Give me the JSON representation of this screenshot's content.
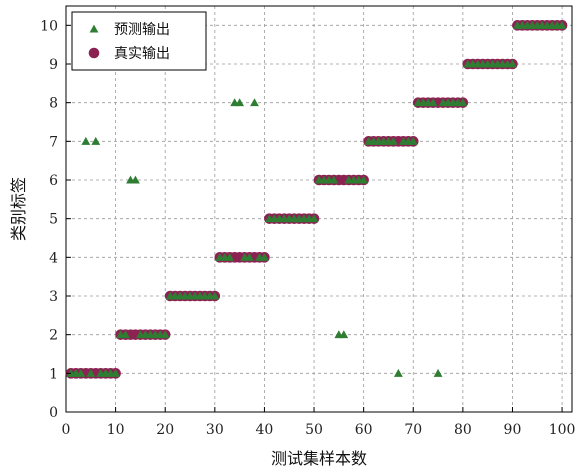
{
  "chart_data": {
    "type": "scatter",
    "xlabel": "测试集样本数",
    "ylabel": "类别标签",
    "xlim": [
      0,
      102
    ],
    "ylim": [
      0,
      10.5
    ],
    "x_ticks": [
      0,
      10,
      20,
      30,
      40,
      50,
      60,
      70,
      80,
      90,
      100
    ],
    "y_ticks": [
      0,
      1,
      2,
      3,
      4,
      5,
      6,
      7,
      8,
      9,
      10
    ],
    "grid": true,
    "grid_style": "dashed",
    "legend_position": "top-left",
    "series": [
      {
        "name": "预测输出",
        "marker": "triangle",
        "color": "#2e7d32",
        "points": [
          [
            1,
            1
          ],
          [
            2,
            1
          ],
          [
            3,
            1
          ],
          [
            4,
            7
          ],
          [
            5,
            1
          ],
          [
            6,
            7
          ],
          [
            7,
            1
          ],
          [
            8,
            1
          ],
          [
            9,
            1
          ],
          [
            10,
            1
          ],
          [
            11,
            2
          ],
          [
            12,
            2
          ],
          [
            13,
            6
          ],
          [
            14,
            6
          ],
          [
            15,
            2
          ],
          [
            16,
            2
          ],
          [
            17,
            2
          ],
          [
            18,
            2
          ],
          [
            19,
            2
          ],
          [
            20,
            2
          ],
          [
            21,
            3
          ],
          [
            22,
            3
          ],
          [
            23,
            3
          ],
          [
            24,
            3
          ],
          [
            25,
            3
          ],
          [
            26,
            3
          ],
          [
            27,
            3
          ],
          [
            28,
            3
          ],
          [
            29,
            3
          ],
          [
            30,
            3
          ],
          [
            31,
            4
          ],
          [
            32,
            4
          ],
          [
            33,
            4
          ],
          [
            34,
            8
          ],
          [
            35,
            8
          ],
          [
            36,
            4
          ],
          [
            37,
            4
          ],
          [
            38,
            8
          ],
          [
            39,
            4
          ],
          [
            40,
            4
          ],
          [
            41,
            5
          ],
          [
            42,
            5
          ],
          [
            43,
            5
          ],
          [
            44,
            5
          ],
          [
            45,
            5
          ],
          [
            46,
            5
          ],
          [
            47,
            5
          ],
          [
            48,
            5
          ],
          [
            49,
            5
          ],
          [
            50,
            5
          ],
          [
            51,
            6
          ],
          [
            52,
            6
          ],
          [
            53,
            6
          ],
          [
            54,
            6
          ],
          [
            55,
            2
          ],
          [
            56,
            2
          ],
          [
            57,
            6
          ],
          [
            58,
            6
          ],
          [
            59,
            6
          ],
          [
            60,
            6
          ],
          [
            61,
            7
          ],
          [
            62,
            7
          ],
          [
            63,
            7
          ],
          [
            64,
            7
          ],
          [
            65,
            7
          ],
          [
            66,
            7
          ],
          [
            67,
            1
          ],
          [
            68,
            7
          ],
          [
            69,
            7
          ],
          [
            70,
            7
          ],
          [
            71,
            8
          ],
          [
            72,
            8
          ],
          [
            73,
            8
          ],
          [
            74,
            8
          ],
          [
            75,
            1
          ],
          [
            76,
            8
          ],
          [
            77,
            8
          ],
          [
            78,
            8
          ],
          [
            79,
            8
          ],
          [
            80,
            8
          ],
          [
            81,
            9
          ],
          [
            82,
            9
          ],
          [
            83,
            9
          ],
          [
            84,
            9
          ],
          [
            85,
            9
          ],
          [
            86,
            9
          ],
          [
            87,
            9
          ],
          [
            88,
            9
          ],
          [
            89,
            9
          ],
          [
            90,
            9
          ],
          [
            91,
            10
          ],
          [
            92,
            10
          ],
          [
            93,
            10
          ],
          [
            94,
            10
          ],
          [
            95,
            10
          ],
          [
            96,
            10
          ],
          [
            97,
            10
          ],
          [
            98,
            10
          ],
          [
            99,
            10
          ],
          [
            100,
            10
          ]
        ]
      },
      {
        "name": "真实输出",
        "marker": "circle",
        "color": "#8b2252",
        "points": [
          [
            1,
            1
          ],
          [
            2,
            1
          ],
          [
            3,
            1
          ],
          [
            4,
            1
          ],
          [
            5,
            1
          ],
          [
            6,
            1
          ],
          [
            7,
            1
          ],
          [
            8,
            1
          ],
          [
            9,
            1
          ],
          [
            10,
            1
          ],
          [
            11,
            2
          ],
          [
            12,
            2
          ],
          [
            13,
            2
          ],
          [
            14,
            2
          ],
          [
            15,
            2
          ],
          [
            16,
            2
          ],
          [
            17,
            2
          ],
          [
            18,
            2
          ],
          [
            19,
            2
          ],
          [
            20,
            2
          ],
          [
            21,
            3
          ],
          [
            22,
            3
          ],
          [
            23,
            3
          ],
          [
            24,
            3
          ],
          [
            25,
            3
          ],
          [
            26,
            3
          ],
          [
            27,
            3
          ],
          [
            28,
            3
          ],
          [
            29,
            3
          ],
          [
            30,
            3
          ],
          [
            31,
            4
          ],
          [
            32,
            4
          ],
          [
            33,
            4
          ],
          [
            34,
            4
          ],
          [
            35,
            4
          ],
          [
            36,
            4
          ],
          [
            37,
            4
          ],
          [
            38,
            4
          ],
          [
            39,
            4
          ],
          [
            40,
            4
          ],
          [
            41,
            5
          ],
          [
            42,
            5
          ],
          [
            43,
            5
          ],
          [
            44,
            5
          ],
          [
            45,
            5
          ],
          [
            46,
            5
          ],
          [
            47,
            5
          ],
          [
            48,
            5
          ],
          [
            49,
            5
          ],
          [
            50,
            5
          ],
          [
            51,
            6
          ],
          [
            52,
            6
          ],
          [
            53,
            6
          ],
          [
            54,
            6
          ],
          [
            55,
            6
          ],
          [
            56,
            6
          ],
          [
            57,
            6
          ],
          [
            58,
            6
          ],
          [
            59,
            6
          ],
          [
            60,
            6
          ],
          [
            61,
            7
          ],
          [
            62,
            7
          ],
          [
            63,
            7
          ],
          [
            64,
            7
          ],
          [
            65,
            7
          ],
          [
            66,
            7
          ],
          [
            67,
            7
          ],
          [
            68,
            7
          ],
          [
            69,
            7
          ],
          [
            70,
            7
          ],
          [
            71,
            8
          ],
          [
            72,
            8
          ],
          [
            73,
            8
          ],
          [
            74,
            8
          ],
          [
            75,
            8
          ],
          [
            76,
            8
          ],
          [
            77,
            8
          ],
          [
            78,
            8
          ],
          [
            79,
            8
          ],
          [
            80,
            8
          ],
          [
            81,
            9
          ],
          [
            82,
            9
          ],
          [
            83,
            9
          ],
          [
            84,
            9
          ],
          [
            85,
            9
          ],
          [
            86,
            9
          ],
          [
            87,
            9
          ],
          [
            88,
            9
          ],
          [
            89,
            9
          ],
          [
            90,
            9
          ],
          [
            91,
            10
          ],
          [
            92,
            10
          ],
          [
            93,
            10
          ],
          [
            94,
            10
          ],
          [
            95,
            10
          ],
          [
            96,
            10
          ],
          [
            97,
            10
          ],
          [
            98,
            10
          ],
          [
            99,
            10
          ],
          [
            100,
            10
          ]
        ]
      }
    ]
  }
}
